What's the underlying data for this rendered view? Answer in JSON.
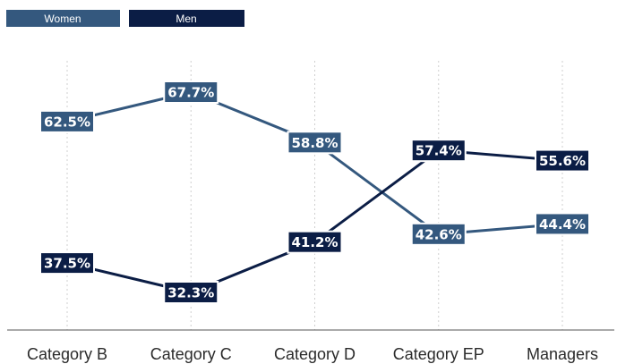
{
  "chart_data": {
    "type": "line",
    "categories": [
      "Category B",
      "Category C",
      "Category D",
      "Category EP",
      "Managers"
    ],
    "series": [
      {
        "name": "Women",
        "values": [
          62.5,
          67.7,
          58.8,
          42.6,
          44.4
        ],
        "labels": [
          "62.5%",
          "67.7%",
          "58.8%",
          "42.6%",
          "44.4%"
        ],
        "color": "#34587e"
      },
      {
        "name": "Men",
        "values": [
          37.5,
          32.3,
          41.2,
          57.4,
          55.6
        ],
        "labels": [
          "37.5%",
          "32.3%",
          "41.2%",
          "57.4%",
          "55.6%"
        ],
        "color": "#0b1d45"
      }
    ],
    "title": "",
    "xlabel": "",
    "ylabel": "",
    "ylim": [
      20,
      80
    ],
    "grid": "vertical-dotted",
    "legend": "top-left",
    "axis_color": "#555555",
    "grid_color": "#cfcfcf"
  }
}
